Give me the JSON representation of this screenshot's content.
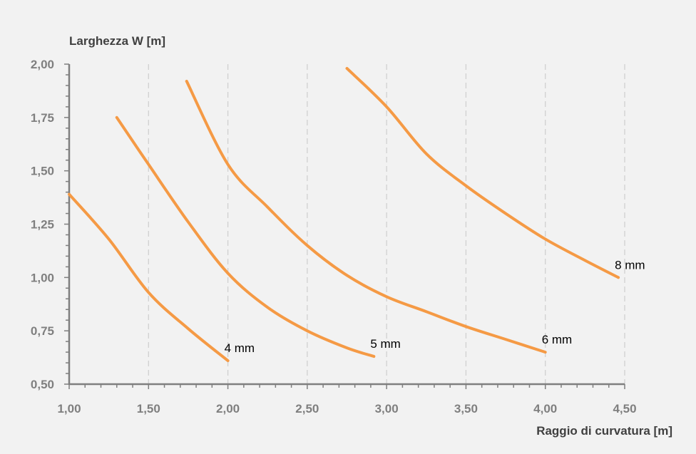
{
  "chart_data": {
    "type": "line",
    "title": "",
    "ylabel": "Larghezza W [m]",
    "xlabel": "Raggio di curvatura [m]",
    "xlim": [
      1.0,
      4.5
    ],
    "ylim": [
      0.5,
      2.0
    ],
    "xticks": [
      "1,00",
      "1,50",
      "2,00",
      "2,50",
      "3,00",
      "3,50",
      "4,00",
      "4,50"
    ],
    "xtick_values": [
      1.0,
      1.5,
      2.0,
      2.5,
      3.0,
      3.5,
      4.0,
      4.5
    ],
    "yticks": [
      "0,50",
      "0,75",
      "1,00",
      "1,25",
      "1,50",
      "1,75",
      "2,00"
    ],
    "ytick_values": [
      0.5,
      0.75,
      1.0,
      1.25,
      1.5,
      1.75,
      2.0
    ],
    "grid": "vertical dashed",
    "color": "#f59a45",
    "series": [
      {
        "name": "4 mm",
        "x": [
          1.0,
          1.25,
          1.5,
          1.75,
          2.0
        ],
        "y": [
          1.39,
          1.18,
          0.93,
          0.76,
          0.61
        ]
      },
      {
        "name": "5 mm",
        "x": [
          1.3,
          1.5,
          1.75,
          2.0,
          2.25,
          2.5,
          2.75,
          2.92
        ],
        "y": [
          1.75,
          1.53,
          1.26,
          1.02,
          0.86,
          0.75,
          0.67,
          0.63
        ]
      },
      {
        "name": "6 mm",
        "x": [
          1.74,
          2.0,
          2.25,
          2.5,
          2.75,
          3.0,
          3.25,
          3.5,
          3.75,
          4.0
        ],
        "y": [
          1.92,
          1.53,
          1.33,
          1.15,
          1.01,
          0.91,
          0.84,
          0.77,
          0.71,
          0.65
        ]
      },
      {
        "name": "8 mm",
        "x": [
          2.75,
          3.0,
          3.25,
          3.5,
          3.75,
          4.0,
          4.25,
          4.46
        ],
        "y": [
          1.98,
          1.8,
          1.58,
          1.43,
          1.3,
          1.18,
          1.08,
          1.0
        ]
      }
    ]
  }
}
